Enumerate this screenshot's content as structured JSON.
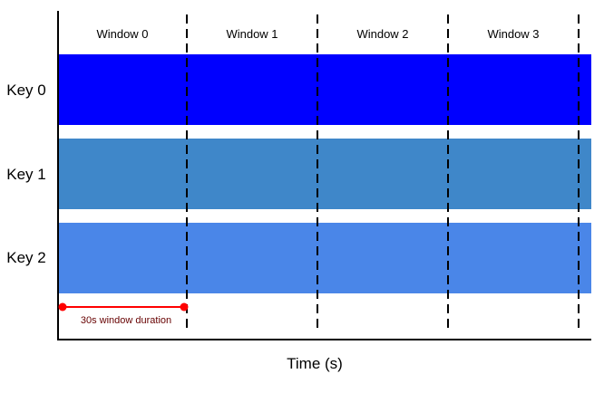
{
  "diagram": {
    "windows": [
      "Window 0",
      "Window 1",
      "Window 2",
      "Window 3"
    ],
    "keys": [
      {
        "label": "Key 0",
        "color": "#0000ff"
      },
      {
        "label": "Key 1",
        "color": "#3f87c9"
      },
      {
        "label": "Key 2",
        "color": "#4a86e8"
      }
    ],
    "duration_label": "30s window duration",
    "x_axis_label": "Time (s)",
    "colors": {
      "axis": "#000000",
      "divider": "#000000",
      "duration_marker": "#ff0000",
      "duration_text": "#660000"
    }
  }
}
